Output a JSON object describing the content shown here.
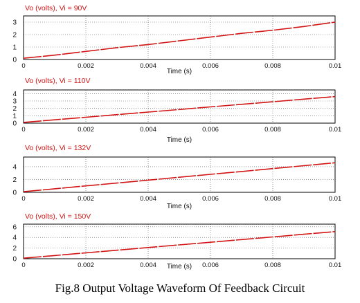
{
  "caption": "Fig.8  Output Voltage Waveform Of Feedback Circuit",
  "colors": {
    "trace": "#d21414",
    "title": "#d21414",
    "frame": "#000000",
    "grid": "#555555",
    "text": "#111111"
  },
  "chart_data": [
    {
      "type": "line",
      "title": "Vo (volts), Vi = 90V",
      "xlabel": "Time (s)",
      "xlim": [
        0,
        0.01
      ],
      "ylim": [
        0,
        3.5
      ],
      "x_tick_labels": [
        "0",
        "0.002",
        "0.004",
        "0.006",
        "0.008",
        "0.01"
      ],
      "y_ticks": [
        0,
        1,
        2,
        3
      ],
      "series": [
        {
          "x": [
            0,
            0.001,
            0.002,
            0.003,
            0.004,
            0.005,
            0.006,
            0.007,
            0.008,
            0.009,
            0.01
          ],
          "y": [
            0.1,
            0.35,
            0.65,
            0.95,
            1.2,
            1.5,
            1.8,
            2.1,
            2.35,
            2.65,
            3.0
          ]
        }
      ],
      "grid": true
    },
    {
      "type": "line",
      "title": "Vo (volts), Vi = 110V",
      "xlabel": "Time (s)",
      "xlim": [
        0,
        0.01
      ],
      "ylim": [
        0,
        4.5
      ],
      "x_tick_labels": [
        "0",
        "0.002",
        "0.004",
        "0.006",
        "0.008",
        "0.01"
      ],
      "y_ticks": [
        0,
        1,
        2,
        3,
        4
      ],
      "series": [
        {
          "x": [
            0,
            0.001,
            0.002,
            0.003,
            0.004,
            0.005,
            0.006,
            0.007,
            0.008,
            0.009,
            0.01
          ],
          "y": [
            0.1,
            0.45,
            0.8,
            1.15,
            1.5,
            1.85,
            2.2,
            2.55,
            2.9,
            3.25,
            3.6
          ]
        }
      ],
      "grid": true
    },
    {
      "type": "line",
      "title": "Vo (volts), Vi = 132V",
      "xlabel": "Time (s)",
      "xlim": [
        0,
        0.01
      ],
      "ylim": [
        0,
        5.5
      ],
      "x_tick_labels": [
        "0",
        "0.002",
        "0.004",
        "0.006",
        "0.008",
        "0.01"
      ],
      "y_ticks": [
        0,
        2,
        4
      ],
      "series": [
        {
          "x": [
            0,
            0.001,
            0.002,
            0.003,
            0.004,
            0.005,
            0.006,
            0.007,
            0.008,
            0.009,
            0.01
          ],
          "y": [
            0.1,
            0.55,
            1.0,
            1.45,
            1.9,
            2.35,
            2.8,
            3.25,
            3.7,
            4.15,
            4.6
          ]
        }
      ],
      "grid": true
    },
    {
      "type": "line",
      "title": "Vo (volts), Vi = 150V",
      "xlabel": "Time (s)",
      "xlim": [
        0,
        0.01
      ],
      "ylim": [
        0,
        6.5
      ],
      "x_tick_labels": [
        "0",
        "0.002",
        "0.004",
        "0.006",
        "0.008",
        "0.01"
      ],
      "y_ticks": [
        0,
        2,
        4,
        6
      ],
      "series": [
        {
          "x": [
            0,
            0.001,
            0.002,
            0.003,
            0.004,
            0.005,
            0.006,
            0.007,
            0.008,
            0.009,
            0.01
          ],
          "y": [
            0.1,
            0.6,
            1.1,
            1.6,
            2.1,
            2.6,
            3.1,
            3.6,
            4.1,
            4.6,
            5.1
          ]
        }
      ],
      "grid": true
    }
  ]
}
